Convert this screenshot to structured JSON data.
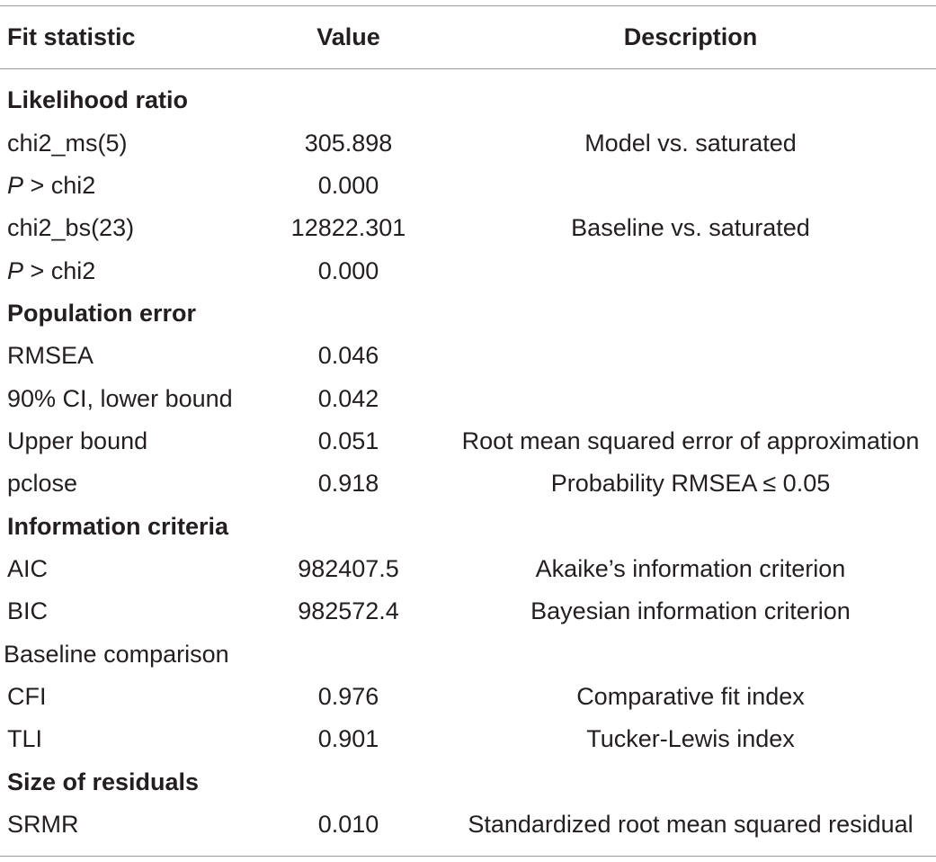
{
  "header": {
    "col1": "Fit statistic",
    "col2": "Value",
    "col3": "Description"
  },
  "sections": {
    "lr": "Likelihood ratio",
    "pe": "Population error",
    "ic": "Information criteria",
    "bc": "Baseline comparison",
    "sr": "Size of residuals"
  },
  "rows": {
    "chi2ms": {
      "stat": "chi2_ms(5)",
      "value": "305.898",
      "desc": "Model vs. saturated"
    },
    "p1": {
      "stat_italic": "P",
      "stat_rest": " > chi2",
      "value": "0.000",
      "desc": ""
    },
    "chi2bs": {
      "stat": "chi2_bs(23)",
      "value": "12822.301",
      "desc": "Baseline vs. saturated"
    },
    "p2": {
      "stat_italic": "P",
      "stat_rest": " > chi2",
      "value": "0.000",
      "desc": ""
    },
    "rmsea": {
      "stat": "RMSEA",
      "value": "0.046",
      "desc": ""
    },
    "lower": {
      "stat": "90% CI, lower bound",
      "value": "0.042",
      "desc": ""
    },
    "upper": {
      "stat": "Upper bound",
      "value": "0.051",
      "desc": "Root mean squared error of approximation"
    },
    "pclose": {
      "stat": "pclose",
      "value": "0.918",
      "desc": "Probability RMSEA ≤ 0.05"
    },
    "aic": {
      "stat": "AIC",
      "value": "982407.5",
      "desc": "Akaike’s information criterion"
    },
    "bic": {
      "stat": "BIC",
      "value": "982572.4",
      "desc": "Bayesian information criterion"
    },
    "cfi": {
      "stat": "CFI",
      "value": "0.976",
      "desc": "Comparative fit index"
    },
    "tli": {
      "stat": "TLI",
      "value": "0.901",
      "desc": "Tucker-Lewis index"
    },
    "srmr": {
      "stat": "SRMR",
      "value": "0.010",
      "desc": "Standardized root mean squared residual"
    }
  }
}
